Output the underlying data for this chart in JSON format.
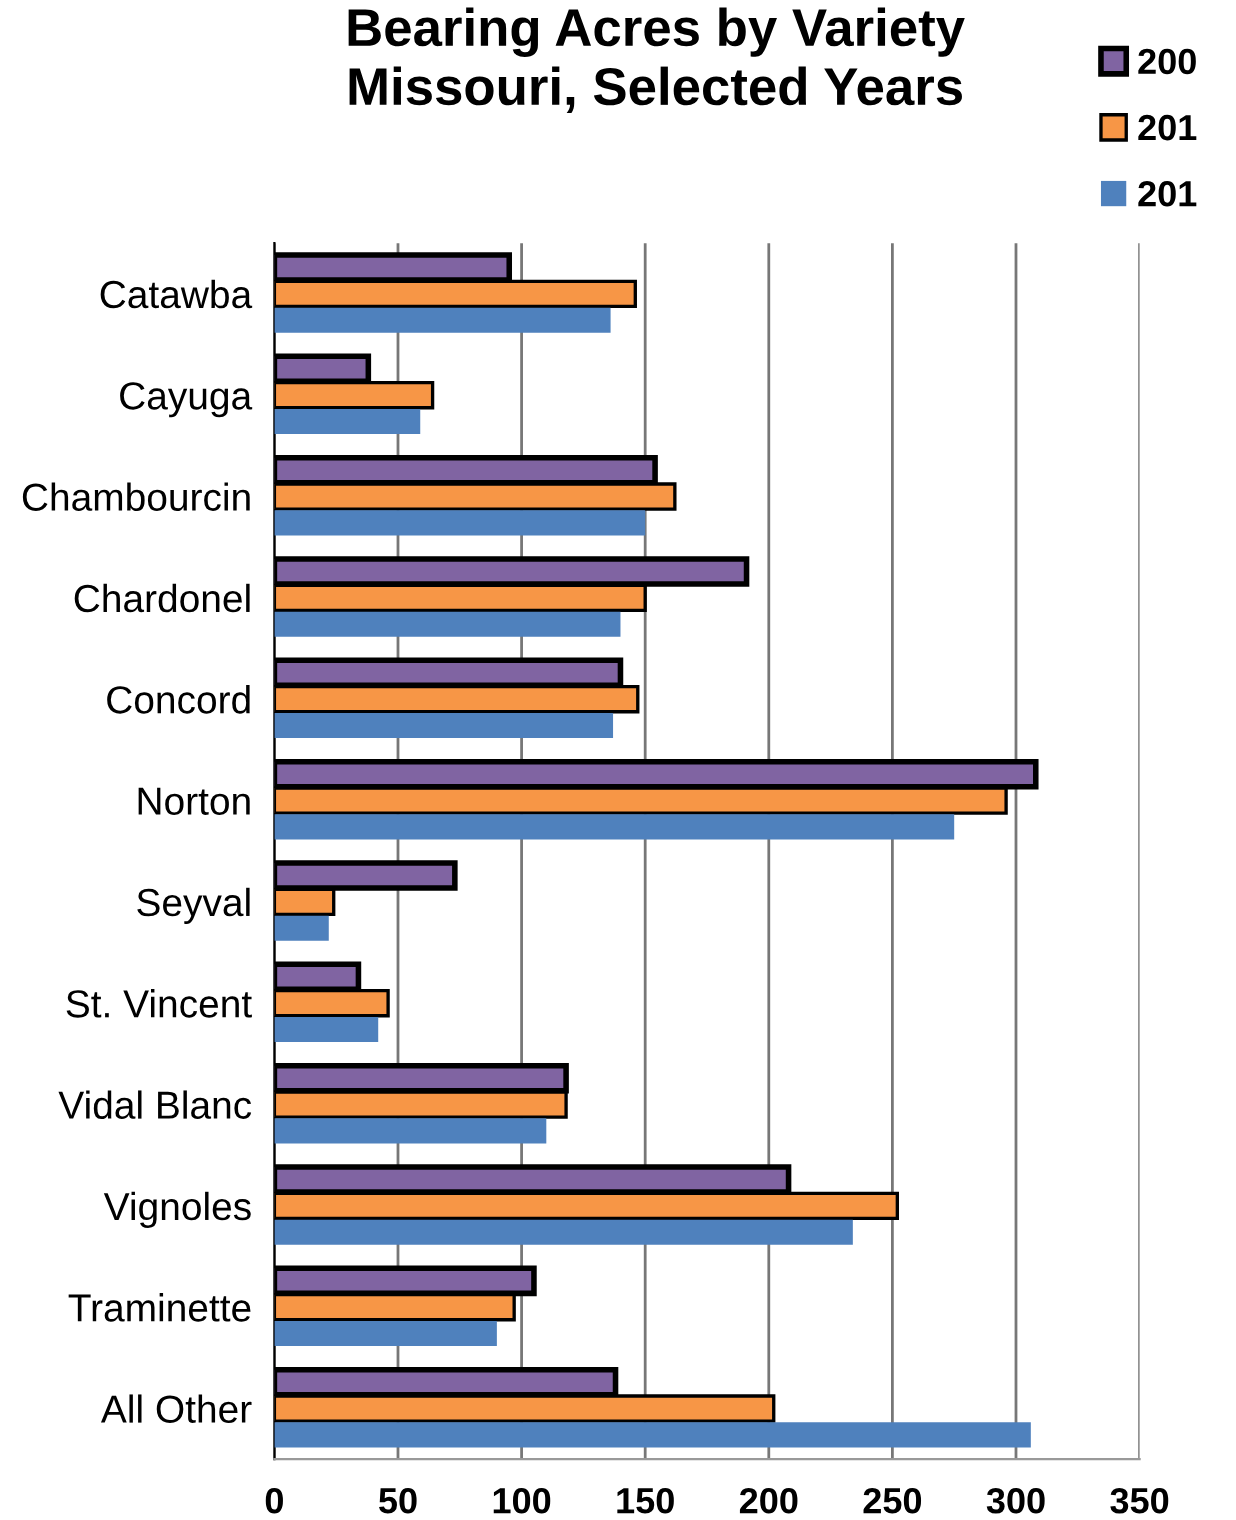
{
  "chart_data": {
    "type": "bar",
    "orientation": "horizontal",
    "title": "Bearing Acres by Variety\nMissouri, Selected Years",
    "categories": [
      "Catawba",
      "Cayuga",
      "Chambourcin",
      "Chardonel",
      "Concord",
      "Norton",
      "Seyval",
      "St. Vincent",
      "Vidal Blanc",
      "Vignoles",
      "Traminette",
      "All Other"
    ],
    "series": [
      {
        "name": "200",
        "color": "#8064a2",
        "values": [
          95,
          38,
          154,
          191,
          140,
          308,
          73,
          34,
          118,
          208,
          105,
          138
        ]
      },
      {
        "name": "201",
        "color": "#f79646",
        "values": [
          146,
          64,
          162,
          150,
          147,
          296,
          24,
          46,
          118,
          252,
          97,
          202
        ]
      },
      {
        "name": "201",
        "color": "#4f81bd",
        "values": [
          136,
          59,
          150,
          140,
          137,
          275,
          22,
          42,
          110,
          234,
          90,
          306
        ]
      }
    ],
    "xlim": [
      0,
      350
    ],
    "xticks": [
      0,
      50,
      100,
      150,
      200,
      250,
      300,
      350
    ],
    "grid": "x",
    "legend": "top right"
  }
}
